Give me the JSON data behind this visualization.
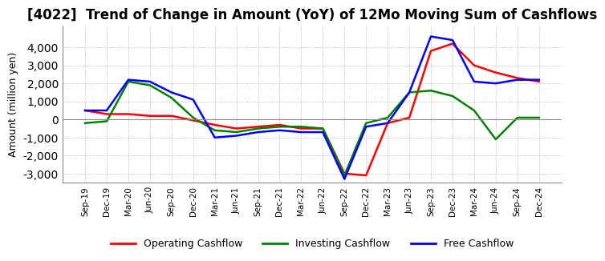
{
  "title": "[4022]  Trend of Change in Amount (YoY) of 12Mo Moving Sum of Cashflows",
  "ylabel": "Amount (million yen)",
  "x_labels": [
    "Sep-19",
    "Dec-19",
    "Mar-20",
    "Jun-20",
    "Sep-20",
    "Dec-20",
    "Mar-21",
    "Jun-21",
    "Sep-21",
    "Dec-21",
    "Mar-22",
    "Jun-22",
    "Sep-22",
    "Dec-22",
    "Mar-23",
    "Jun-23",
    "Sep-23",
    "Dec-23",
    "Mar-24",
    "Jun-24",
    "Sep-24",
    "Dec-24"
  ],
  "operating": [
    500,
    300,
    300,
    200,
    200,
    -50,
    -300,
    -500,
    -400,
    -300,
    -500,
    -500,
    -3000,
    -3100,
    -200,
    100,
    3800,
    4200,
    3000,
    2600,
    2300,
    2100
  ],
  "investing": [
    -200,
    -100,
    2100,
    1900,
    1200,
    100,
    -600,
    -700,
    -500,
    -400,
    -400,
    -500,
    -3100,
    -200,
    100,
    1500,
    1600,
    1300,
    500,
    -1100,
    100,
    100
  ],
  "free": [
    500,
    500,
    2200,
    2100,
    1500,
    1100,
    -1000,
    -900,
    -700,
    -600,
    -700,
    -700,
    -3300,
    -400,
    -200,
    1500,
    4600,
    4400,
    2100,
    2000,
    2200,
    2200
  ],
  "ylim": [
    -3500,
    5200
  ],
  "yticks": [
    -3000,
    -2000,
    -1000,
    0,
    1000,
    2000,
    3000,
    4000
  ],
  "operating_color": "#ff0000",
  "investing_color": "#008000",
  "free_color": "#0000ff",
  "bg_color": "#ffffff",
  "grid_color": "#aaaaaa",
  "title_fontsize": 12,
  "legend_labels": [
    "Operating Cashflow",
    "Investing Cashflow",
    "Free Cashflow"
  ]
}
